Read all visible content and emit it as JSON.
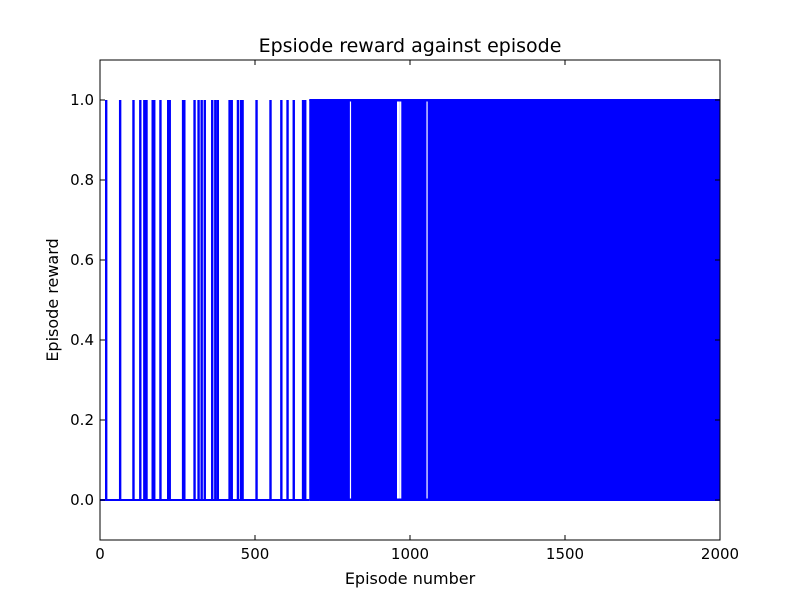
{
  "chart_data": {
    "type": "line",
    "title": "Epsiode reward against episode",
    "xlabel": "Episode number",
    "ylabel": "Episode reward",
    "xlim": [
      0,
      2000
    ],
    "ylim": [
      -0.1,
      1.1
    ],
    "xticks": [
      0,
      500,
      1000,
      1500,
      2000
    ],
    "yticks": [
      0.0,
      0.2,
      0.4,
      0.6,
      0.8,
      1.0
    ],
    "ytick_labels": [
      "0.0",
      "0.2",
      "0.4",
      "0.6",
      "0.8",
      "1.0"
    ],
    "grid": false,
    "line_color": "#0000ff",
    "series": [
      {
        "reward_spike_episodes": [
          20,
          65,
          108,
          130,
          143,
          150,
          170,
          175,
          195,
          220,
          225,
          268,
          272,
          305,
          318,
          328,
          338,
          362,
          372,
          380,
          418,
          425,
          445,
          455,
          460,
          505,
          550,
          585,
          605,
          625,
          655,
          662
        ],
        "dense_region": {
          "start_episode": 675,
          "end_episode": 2000,
          "values": [
            0,
            1
          ],
          "visible_gaps": [
            808,
            960,
            963,
            967,
            970,
            1055
          ]
        }
      }
    ]
  }
}
